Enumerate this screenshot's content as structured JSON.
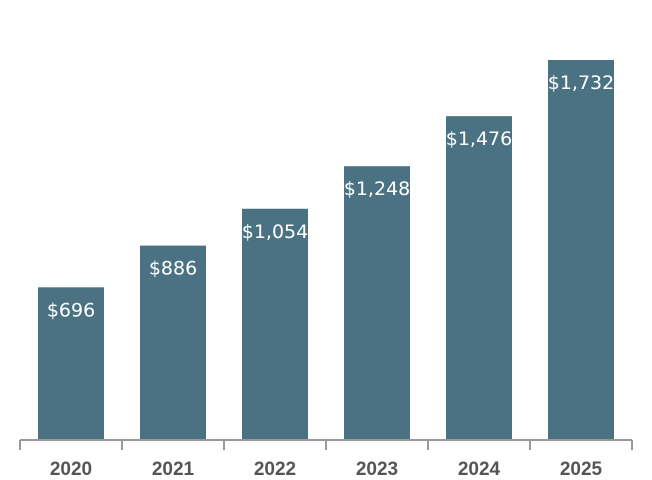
{
  "chart_data": {
    "type": "bar",
    "categories": [
      "2020",
      "2021",
      "2022",
      "2023",
      "2024",
      "2025"
    ],
    "values": [
      696,
      886,
      1054,
      1248,
      1476,
      1732
    ],
    "value_labels": [
      "$696",
      "$886",
      "$1,054",
      "$1,248",
      "$1,476",
      "$1,732"
    ],
    "title": "",
    "xlabel": "",
    "ylabel": "",
    "ylim": [
      0,
      1732
    ],
    "grid": false,
    "legend": "none"
  },
  "colors": {
    "bar": "#4a7282",
    "axis": "#999999",
    "tick_text": "#555555",
    "value_text": "#ffffff"
  }
}
